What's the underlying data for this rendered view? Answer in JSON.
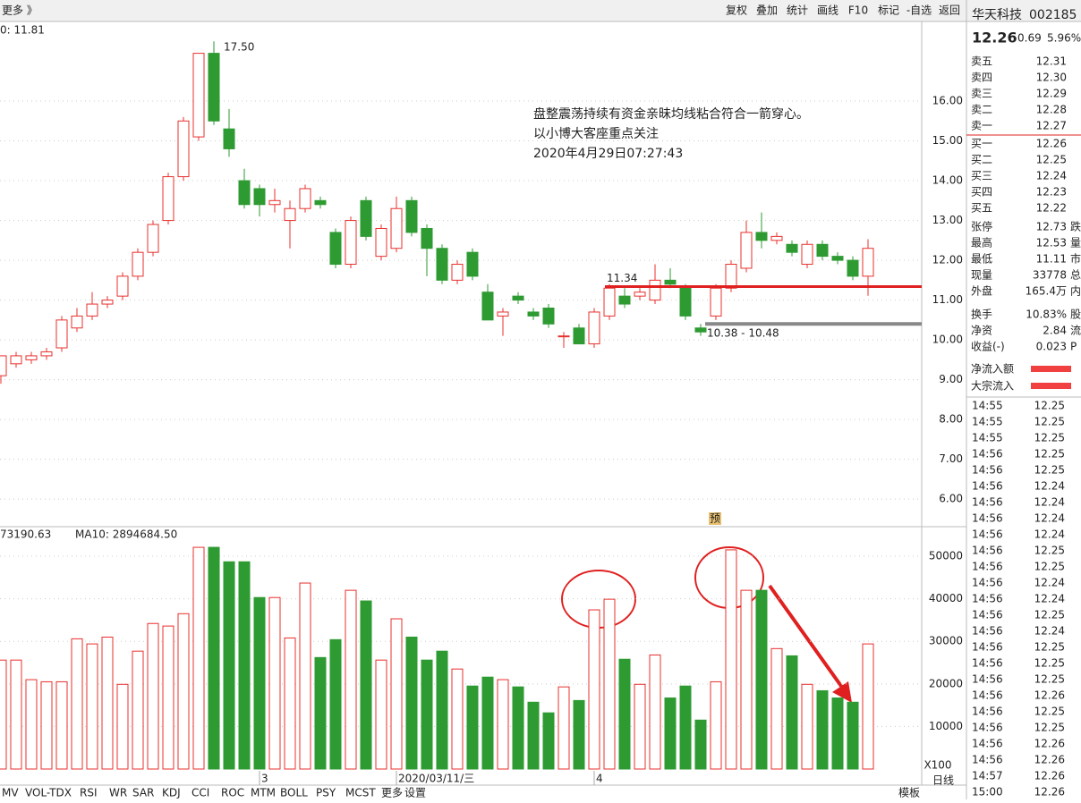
{
  "toolbar": {
    "left": "更多 》",
    "buttons": [
      "复权",
      "叠加",
      "统计",
      "画线",
      "F10",
      "标记",
      "-自选",
      "返回"
    ]
  },
  "chart_data": {
    "type": "candlestick",
    "header": "0: 11.81",
    "ylim": [
      5.33,
      17.91
    ],
    "yticks": [
      {
        "value": 6,
        "label": "6.00"
      },
      {
        "value": 7,
        "label": "7.00"
      },
      {
        "value": 8,
        "label": "8.00"
      },
      {
        "value": 9,
        "label": "9.00"
      },
      {
        "value": 10,
        "label": "10.00"
      },
      {
        "value": 11,
        "label": "11.00"
      },
      {
        "value": 12,
        "label": "12.00"
      },
      {
        "value": 13,
        "label": "13.00"
      },
      {
        "value": 14,
        "label": "14.00"
      },
      {
        "value": 15,
        "label": "15.00"
      },
      {
        "value": 16,
        "label": "16.00"
      }
    ],
    "up_color": "#e8302e",
    "down_color": "#2e9a32",
    "candles": [
      [
        9.1,
        9.6,
        8.9,
        9.6
      ],
      [
        9.4,
        9.7,
        9.3,
        9.6
      ],
      [
        9.5,
        9.7,
        9.4,
        9.6
      ],
      [
        9.6,
        9.8,
        9.5,
        9.7
      ],
      [
        9.8,
        10.6,
        9.7,
        10.5
      ],
      [
        10.3,
        10.8,
        10.2,
        10.6
      ],
      [
        10.6,
        11.2,
        10.5,
        10.9
      ],
      [
        10.9,
        11.1,
        10.8,
        11.0
      ],
      [
        11.1,
        11.7,
        11.0,
        11.6
      ],
      [
        11.6,
        12.3,
        11.5,
        12.2
      ],
      [
        12.2,
        13.0,
        12.1,
        12.9
      ],
      [
        13.0,
        14.2,
        12.9,
        14.1
      ],
      [
        14.1,
        15.6,
        14.0,
        15.5
      ],
      [
        15.1,
        17.2,
        15.0,
        17.2
      ],
      [
        17.2,
        17.5,
        15.4,
        15.5
      ],
      [
        15.3,
        15.8,
        14.6,
        14.8
      ],
      [
        14.0,
        14.3,
        13.3,
        13.4
      ],
      [
        13.8,
        13.9,
        13.1,
        13.4
      ],
      [
        13.4,
        13.8,
        13.2,
        13.5
      ],
      [
        13.0,
        13.5,
        12.3,
        13.3
      ],
      [
        13.3,
        13.9,
        13.2,
        13.8
      ],
      [
        13.5,
        13.6,
        13.3,
        13.4
      ],
      [
        12.7,
        12.8,
        11.8,
        11.9
      ],
      [
        11.9,
        13.1,
        11.8,
        13.0
      ],
      [
        13.5,
        13.6,
        12.5,
        12.6
      ],
      [
        12.1,
        12.9,
        12.0,
        12.8
      ],
      [
        12.3,
        13.6,
        12.2,
        13.3
      ],
      [
        13.5,
        13.6,
        12.6,
        12.7
      ],
      [
        12.8,
        12.9,
        11.6,
        12.3
      ],
      [
        12.3,
        12.4,
        11.4,
        11.5
      ],
      [
        11.5,
        12.0,
        11.4,
        11.9
      ],
      [
        12.2,
        12.3,
        11.5,
        11.6
      ],
      [
        11.2,
        11.4,
        10.5,
        10.5
      ],
      [
        10.6,
        10.8,
        10.1,
        10.7
      ],
      [
        11.1,
        11.2,
        10.9,
        11.0
      ],
      [
        10.7,
        10.8,
        10.5,
        10.6
      ],
      [
        10.8,
        10.9,
        10.3,
        10.4
      ],
      [
        10.1,
        10.2,
        9.8,
        10.1
      ],
      [
        10.3,
        10.4,
        9.9,
        9.9
      ],
      [
        9.9,
        10.8,
        9.8,
        10.7
      ],
      [
        10.6,
        11.4,
        10.5,
        11.3
      ],
      [
        11.1,
        11.3,
        10.8,
        10.9
      ],
      [
        11.1,
        11.3,
        11.0,
        11.2
      ],
      [
        11.0,
        11.9,
        10.9,
        11.5
      ],
      [
        11.5,
        11.8,
        11.3,
        11.4
      ],
      [
        11.3,
        11.4,
        10.5,
        10.6
      ],
      [
        10.3,
        10.4,
        10.1,
        10.2
      ],
      [
        10.6,
        11.4,
        10.5,
        11.3
      ],
      [
        11.3,
        12.0,
        11.2,
        11.9
      ],
      [
        11.8,
        13.0,
        11.7,
        12.7
      ],
      [
        12.7,
        13.2,
        12.3,
        12.5
      ],
      [
        12.5,
        12.7,
        12.4,
        12.6
      ],
      [
        12.4,
        12.5,
        12.1,
        12.2
      ],
      [
        11.9,
        12.5,
        11.8,
        12.4
      ],
      [
        12.4,
        12.5,
        12.0,
        12.1
      ],
      [
        12.1,
        12.2,
        11.9,
        12.0
      ],
      [
        12.0,
        12.1,
        11.5,
        11.6
      ],
      [
        11.6,
        12.53,
        11.11,
        12.3
      ]
    ],
    "lines": [
      {
        "value": 11.34,
        "color": "#e02020"
      },
      {
        "value": 10.4,
        "color": "#888888"
      }
    ],
    "high_label": "17.50",
    "level_label": "11.34",
    "range_label": "10.38 - 10.48",
    "marker": "预",
    "note": [
      "盘整震荡持续有资金亲昧均线粘合符合一箭穿心。",
      "以小博大客座重点关注",
      "2020年4月29日07:27:43"
    ],
    "x_labels": [
      {
        "index": 17,
        "label": "3"
      },
      {
        "index": 26,
        "label": "2020/03/11/三"
      },
      {
        "index": 39,
        "label": "4"
      }
    ],
    "volume": {
      "legend": [
        "73190.63",
        "MA10: 2894684.50"
      ],
      "ylim": [
        0,
        56737
      ],
      "yticks": [
        10000,
        20000,
        30000,
        40000,
        50000
      ],
      "unit": "X100",
      "values": [
        25600,
        25600,
        21000,
        20500,
        20500,
        30600,
        29400,
        31000,
        19900,
        27700,
        34200,
        33600,
        36500,
        52100,
        52100,
        48700,
        48700,
        40300,
        40300,
        30800,
        43700,
        26200,
        30400,
        42000,
        39500,
        25600,
        35300,
        31000,
        25600,
        27700,
        23500,
        19500,
        21600,
        21000,
        19300,
        15700,
        13200,
        19300,
        16100,
        37400,
        39900,
        25800,
        19900,
        26800,
        16700,
        19500,
        11500,
        20500,
        51500,
        42000,
        42000,
        28300,
        26600,
        19900,
        18400,
        16700,
        15700,
        29400
      ]
    }
  },
  "quote": {
    "name": "华天科技",
    "code": "002185",
    "price": "12.26",
    "change": "0.69",
    "pct": "5.96%",
    "sell": [
      [
        "卖五",
        "12.31"
      ],
      [
        "卖四",
        "12.30"
      ],
      [
        "卖三",
        "12.29"
      ],
      [
        "卖二",
        "12.28"
      ],
      [
        "卖一",
        "12.27"
      ]
    ],
    "buy": [
      [
        "买一",
        "12.26"
      ],
      [
        "买二",
        "12.25"
      ],
      [
        "买三",
        "12.24"
      ],
      [
        "买四",
        "12.23"
      ],
      [
        "买五",
        "12.22"
      ]
    ],
    "stats": [
      [
        "张停",
        "12.73",
        "跌"
      ],
      [
        "最高",
        "12.53",
        "量"
      ],
      [
        "最低",
        "11.11",
        "市"
      ],
      [
        "现量",
        "33778",
        "总"
      ],
      [
        "外盘",
        "165.4万",
        "内"
      ]
    ],
    "stats2": [
      [
        "换手",
        "10.83%",
        "股"
      ],
      [
        "净资",
        "2.84",
        "流"
      ],
      [
        "收益(-)",
        "0.023",
        "P"
      ]
    ],
    "flows": [
      "净流入额",
      "大宗流入"
    ],
    "ticks": [
      [
        "14:55",
        "12.25"
      ],
      [
        "14:55",
        "12.25"
      ],
      [
        "14:55",
        "12.25"
      ],
      [
        "14:56",
        "12.25"
      ],
      [
        "14:56",
        "12.25"
      ],
      [
        "14:56",
        "12.24"
      ],
      [
        "14:56",
        "12.24"
      ],
      [
        "14:56",
        "12.24"
      ],
      [
        "14:56",
        "12.24"
      ],
      [
        "14:56",
        "12.25"
      ],
      [
        "14:56",
        "12.25"
      ],
      [
        "14:56",
        "12.24"
      ],
      [
        "14:56",
        "12.24"
      ],
      [
        "14:56",
        "12.25"
      ],
      [
        "14:56",
        "12.24"
      ],
      [
        "14:56",
        "12.25"
      ],
      [
        "14:56",
        "12.25"
      ],
      [
        "14:56",
        "12.25"
      ],
      [
        "14:56",
        "12.26"
      ],
      [
        "14:56",
        "12.25"
      ],
      [
        "14:56",
        "12.25"
      ],
      [
        "14:56",
        "12.26"
      ],
      [
        "14:56",
        "12.26"
      ],
      [
        "14:57",
        "12.26"
      ],
      [
        "15:00",
        "12.26"
      ]
    ]
  },
  "tabs": [
    "MV",
    "VOL-TDX",
    "RSI",
    "WR",
    "SAR",
    "KDJ",
    "CCI",
    "ROC",
    "MTM",
    "BOLL",
    "PSY",
    "MCST",
    "更多",
    "设置"
  ],
  "tabs_right": [
    "模板",
    "日线"
  ]
}
